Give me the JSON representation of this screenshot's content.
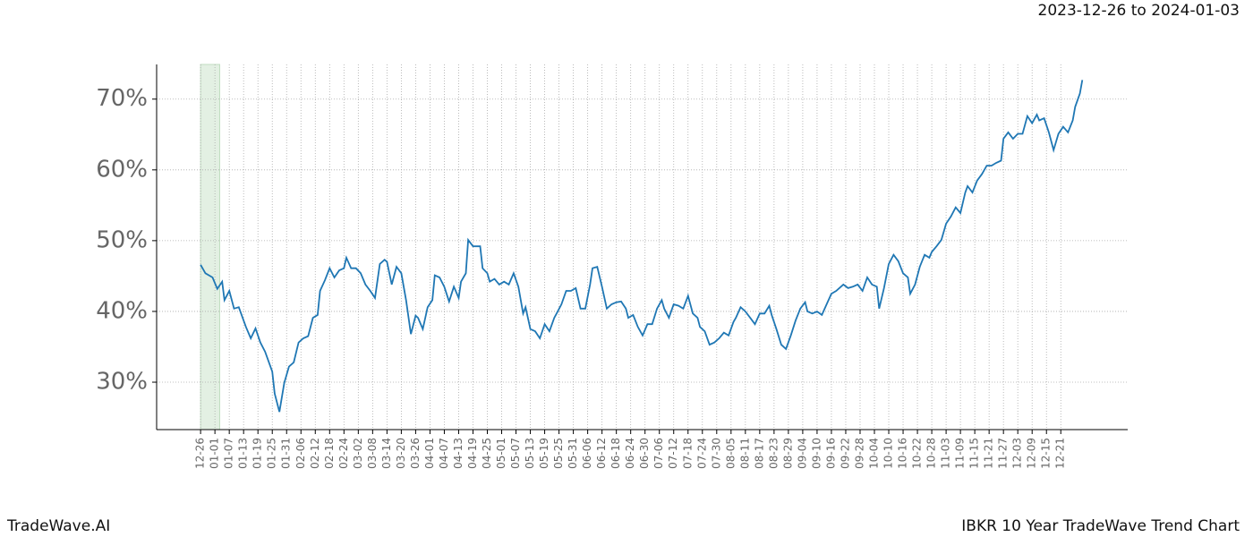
{
  "chart_data": {
    "type": "line",
    "title": "2023-12-26 to 2024-01-03",
    "brand": "TradeWave.AI",
    "caption": "IBKR 10 Year TradeWave Trend Chart",
    "color": "#1f77b4",
    "span": [
      0,
      8
    ],
    "span_color": "#d8ebd8",
    "grid": true,
    "xlim": [
      -18.4,
      388
    ],
    "ylim": [
      23.3,
      74.9
    ],
    "yticks": [
      {
        "value": 30,
        "label": "30%"
      },
      {
        "value": 40,
        "label": "40%"
      },
      {
        "value": 50,
        "label": "50%"
      },
      {
        "value": 60,
        "label": "60%"
      },
      {
        "value": 70,
        "label": "70%"
      }
    ],
    "xticks": [
      {
        "value": 0,
        "label": "12-26"
      },
      {
        "value": 6,
        "label": "01-01"
      },
      {
        "value": 12,
        "label": "01-07"
      },
      {
        "value": 18,
        "label": "01-13"
      },
      {
        "value": 24,
        "label": "01-19"
      },
      {
        "value": 30,
        "label": "01-25"
      },
      {
        "value": 36,
        "label": "01-31"
      },
      {
        "value": 42,
        "label": "02-06"
      },
      {
        "value": 48,
        "label": "02-12"
      },
      {
        "value": 54,
        "label": "02-18"
      },
      {
        "value": 60,
        "label": "02-24"
      },
      {
        "value": 66,
        "label": "03-02"
      },
      {
        "value": 72,
        "label": "03-08"
      },
      {
        "value": 78,
        "label": "03-14"
      },
      {
        "value": 84,
        "label": "03-20"
      },
      {
        "value": 90,
        "label": "03-26"
      },
      {
        "value": 96,
        "label": "04-01"
      },
      {
        "value": 102,
        "label": "04-07"
      },
      {
        "value": 108,
        "label": "04-13"
      },
      {
        "value": 114,
        "label": "04-19"
      },
      {
        "value": 120,
        "label": "04-25"
      },
      {
        "value": 126,
        "label": "05-01"
      },
      {
        "value": 132,
        "label": "05-07"
      },
      {
        "value": 138,
        "label": "05-13"
      },
      {
        "value": 144,
        "label": "05-19"
      },
      {
        "value": 150,
        "label": "05-25"
      },
      {
        "value": 156,
        "label": "05-31"
      },
      {
        "value": 162,
        "label": "06-06"
      },
      {
        "value": 168,
        "label": "06-12"
      },
      {
        "value": 174,
        "label": "06-18"
      },
      {
        "value": 180,
        "label": "06-24"
      },
      {
        "value": 186,
        "label": "06-30"
      },
      {
        "value": 192,
        "label": "07-06"
      },
      {
        "value": 198,
        "label": "07-12"
      },
      {
        "value": 204,
        "label": "07-18"
      },
      {
        "value": 210,
        "label": "07-24"
      },
      {
        "value": 216,
        "label": "07-30"
      },
      {
        "value": 222,
        "label": "08-05"
      },
      {
        "value": 228,
        "label": "08-11"
      },
      {
        "value": 234,
        "label": "08-17"
      },
      {
        "value": 240,
        "label": "08-23"
      },
      {
        "value": 246,
        "label": "08-29"
      },
      {
        "value": 252,
        "label": "09-04"
      },
      {
        "value": 258,
        "label": "09-10"
      },
      {
        "value": 264,
        "label": "09-16"
      },
      {
        "value": 270,
        "label": "09-22"
      },
      {
        "value": 276,
        "label": "09-28"
      },
      {
        "value": 282,
        "label": "10-04"
      },
      {
        "value": 288,
        "label": "10-10"
      },
      {
        "value": 294,
        "label": "10-16"
      },
      {
        "value": 300,
        "label": "10-22"
      },
      {
        "value": 306,
        "label": "10-28"
      },
      {
        "value": 312,
        "label": "11-03"
      },
      {
        "value": 318,
        "label": "11-09"
      },
      {
        "value": 324,
        "label": "11-15"
      },
      {
        "value": 330,
        "label": "11-21"
      },
      {
        "value": 336,
        "label": "11-27"
      },
      {
        "value": 342,
        "label": "12-03"
      },
      {
        "value": 348,
        "label": "12-09"
      },
      {
        "value": 354,
        "label": "12-15"
      },
      {
        "value": 360,
        "label": "12-21"
      }
    ],
    "x": [
      0,
      2,
      5,
      7,
      9,
      10,
      12,
      14,
      16,
      19,
      21,
      23,
      25,
      27,
      30,
      31,
      33,
      35,
      37,
      39,
      41,
      43,
      45,
      47,
      49,
      50,
      52,
      54,
      56,
      58,
      60,
      61,
      63,
      65,
      67,
      69,
      71,
      73,
      75,
      77,
      78,
      80,
      82,
      84,
      86,
      88,
      90,
      91,
      93,
      95,
      97,
      98,
      100,
      102,
      104,
      106,
      108,
      109,
      111,
      112,
      114,
      117,
      118,
      120,
      121,
      123,
      125,
      127,
      129,
      131,
      133,
      135,
      136,
      138,
      140,
      142,
      144,
      146,
      148,
      149,
      151,
      153,
      155,
      157,
      159,
      161,
      163,
      164,
      166,
      168,
      170,
      172,
      174,
      176,
      178,
      179,
      181,
      183,
      185,
      187,
      189,
      191,
      193,
      194,
      196,
      198,
      200,
      202,
      204,
      206,
      208,
      209,
      211,
      213,
      215,
      217,
      219,
      221,
      223,
      224,
      226,
      228,
      230,
      232,
      234,
      236,
      238,
      239,
      241,
      243,
      245,
      247,
      249,
      251,
      253,
      254,
      256,
      258,
      260,
      262,
      264,
      266,
      268,
      269,
      271,
      273,
      275,
      277,
      279,
      281,
      283,
      284,
      286,
      288,
      290,
      292,
      294,
      296,
      297,
      299,
      301,
      303,
      305,
      306,
      308,
      310,
      312,
      314,
      316,
      318,
      320,
      321,
      323,
      325,
      327,
      329,
      331,
      333,
      335,
      336,
      338,
      340,
      342,
      344,
      346,
      348,
      350,
      351,
      353,
      355,
      357,
      359,
      361,
      363,
      365,
      366,
      368,
      369
    ],
    "values": [
      46.6,
      45.4,
      44.8,
      43.2,
      44.2,
      41.6,
      42.9,
      40.4,
      40.6,
      37.8,
      36.2,
      37.6,
      35.6,
      34.3,
      31.5,
      28.4,
      25.8,
      29.9,
      32.2,
      32.8,
      35.6,
      36.2,
      36.5,
      39.1,
      39.5,
      42.9,
      44.4,
      46.1,
      44.8,
      45.8,
      46.1,
      47.6,
      46.1,
      46.1,
      45.4,
      43.8,
      42.9,
      41.9,
      46.7,
      47.3,
      47.0,
      43.8,
      46.3,
      45.4,
      41.6,
      36.8,
      39.4,
      39.1,
      37.5,
      40.6,
      41.6,
      45.1,
      44.8,
      43.5,
      41.4,
      43.5,
      41.9,
      44.2,
      45.4,
      50.1,
      49.2,
      49.2,
      46.1,
      45.4,
      44.2,
      44.6,
      43.8,
      44.2,
      43.8,
      45.4,
      43.5,
      39.7,
      40.6,
      37.5,
      37.2,
      36.2,
      38.2,
      37.2,
      39.1,
      39.7,
      41.0,
      42.9,
      42.9,
      43.3,
      40.4,
      40.4,
      43.8,
      46.1,
      46.3,
      43.5,
      40.4,
      41.0,
      41.3,
      41.4,
      40.4,
      39.1,
      39.5,
      37.8,
      36.6,
      38.2,
      38.2,
      40.4,
      41.6,
      40.4,
      39.1,
      41.0,
      40.8,
      40.4,
      42.2,
      39.7,
      39.1,
      37.8,
      37.2,
      35.3,
      35.6,
      36.2,
      37.0,
      36.6,
      38.5,
      39.1,
      40.6,
      40.0,
      39.1,
      38.2,
      39.7,
      39.7,
      40.8,
      39.5,
      37.5,
      35.3,
      34.7,
      36.6,
      38.7,
      40.4,
      41.3,
      40.0,
      39.7,
      40.0,
      39.5,
      41.0,
      42.5,
      42.9,
      43.5,
      43.8,
      43.3,
      43.5,
      43.8,
      42.9,
      44.8,
      43.8,
      43.5,
      40.4,
      43.3,
      46.7,
      48.0,
      47.1,
      45.4,
      44.8,
      42.5,
      43.8,
      46.3,
      48.0,
      47.6,
      48.4,
      49.2,
      50.1,
      52.4,
      53.4,
      54.7,
      53.9,
      56.8,
      57.7,
      56.8,
      58.5,
      59.4,
      60.6,
      60.6,
      61.0,
      61.3,
      64.4,
      65.3,
      64.4,
      65.1,
      65.1,
      67.6,
      66.6,
      67.8,
      67.0,
      67.3,
      65.3,
      62.8,
      65.1,
      66.1,
      65.3,
      67.0,
      68.9,
      70.8,
      72.7
    ]
  }
}
